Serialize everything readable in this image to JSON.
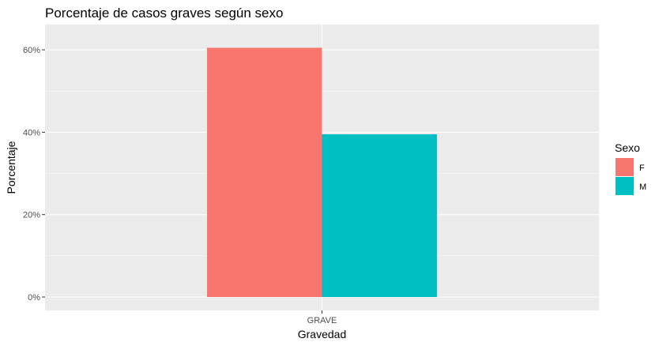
{
  "chart_data": {
    "type": "bar",
    "title": "Porcentaje de casos graves según sexo",
    "xlabel": "Gravedad",
    "ylabel": "Porcentaje",
    "categories": [
      "GRAVE"
    ],
    "series": [
      {
        "name": "F",
        "values": [
          0.605
        ],
        "color": "#F8766D"
      },
      {
        "name": "M",
        "values": [
          0.395
        ],
        "color": "#00BFC4"
      }
    ],
    "ylim": [
      0,
      0.65
    ],
    "yticks": [
      0,
      0.2,
      0.4,
      0.6
    ],
    "ytick_labels": [
      "0%",
      "20%",
      "40%",
      "60%"
    ],
    "legend": {
      "title": "Sexo",
      "position": "right"
    },
    "grid": true,
    "panel_background": "#EBEBEB"
  }
}
